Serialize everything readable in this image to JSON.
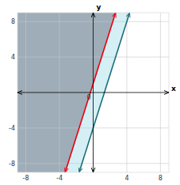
{
  "chart_data": {
    "type": "line",
    "x_label": "x",
    "y_label": "y",
    "xlim": [
      -9,
      9
    ],
    "ylim": [
      -9,
      9
    ],
    "xticks": [
      -8,
      -4,
      0,
      4,
      8
    ],
    "yticks": [
      -8,
      -4,
      4,
      8
    ],
    "grid": true,
    "colors": [
      "#9eadb8",
      "#d4f0f5"
    ],
    "series": [
      {
        "color": "#e8000d",
        "x": [
          -3.3333333333333335,
          2.6666666666666665
        ],
        "values": [
          -9,
          9
        ]
      },
      {
        "color": "#1a6e7a",
        "x": [
          -1.6666666666666667,
          4.333333333333333
        ],
        "values": [
          -9,
          9
        ]
      }
    ]
  }
}
